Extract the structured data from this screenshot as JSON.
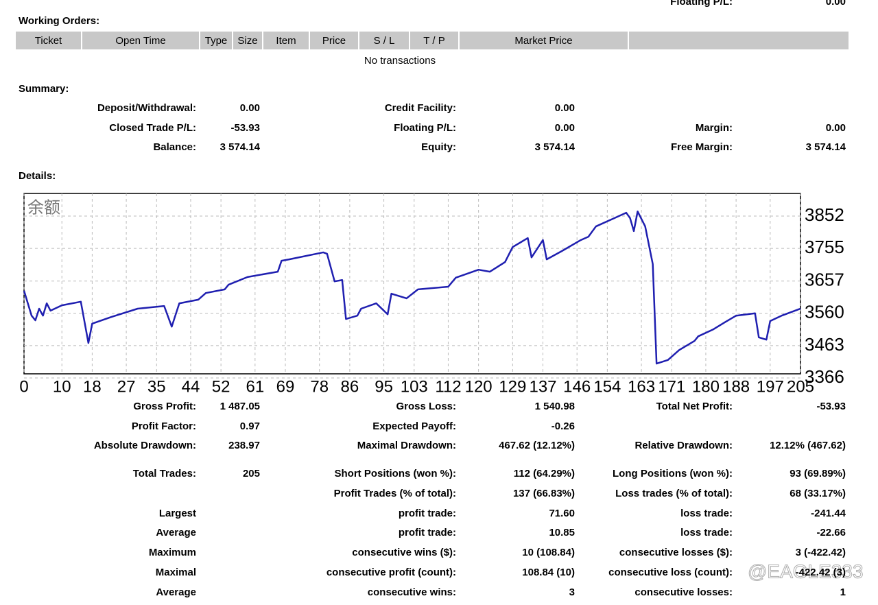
{
  "header": {
    "label": "Floating P/L:",
    "value": "0.00"
  },
  "working_orders": {
    "title": "Working Orders:",
    "columns": [
      "Ticket",
      "Open Time",
      "Type",
      "Size",
      "Item",
      "Price",
      "S / L",
      "T / P",
      "Market Price"
    ],
    "empty": "No transactions"
  },
  "summary": {
    "title": "Summary:",
    "rows": [
      [
        {
          "label": "Deposit/Withdrawal:",
          "value": "0.00"
        },
        {
          "label": "Credit Facility:",
          "value": "0.00"
        },
        null
      ],
      [
        {
          "label": "Closed Trade P/L:",
          "value": "-53.93"
        },
        {
          "label": "Floating P/L:",
          "value": "0.00"
        },
        {
          "label": "Margin:",
          "value": "0.00"
        }
      ],
      [
        {
          "label": "Balance:",
          "value": "3 574.14"
        },
        {
          "label": "Equity:",
          "value": "3 574.14"
        },
        {
          "label": "Free Margin:",
          "value": "3 574.14"
        }
      ]
    ]
  },
  "details": {
    "title": "Details:",
    "rows": [
      [
        {
          "label": "Gross Profit:",
          "value": "1 487.05"
        },
        {
          "label": "Gross Loss:",
          "value": "1 540.98"
        },
        {
          "label": "Total Net Profit:",
          "value": "-53.93"
        }
      ],
      [
        {
          "label": "Profit Factor:",
          "value": "0.97"
        },
        {
          "label": "Expected Payoff:",
          "value": "-0.26"
        },
        null
      ],
      [
        {
          "label": "Absolute Drawdown:",
          "value": "238.97"
        },
        {
          "label": "Maximal Drawdown:",
          "value": "467.62 (12.12%)"
        },
        {
          "label": "Relative Drawdown:",
          "value": "12.12% (467.62)"
        }
      ],
      [
        {
          "label": "Total Trades:",
          "value": "205"
        },
        {
          "label": "Short Positions (won %):",
          "value": "112 (64.29%)"
        },
        {
          "label": "Long Positions (won %):",
          "value": "93 (69.89%)"
        }
      ],
      [
        null,
        {
          "label": "Profit Trades (% of total):",
          "value": "137 (66.83%)"
        },
        {
          "label": "Loss trades (% of total):",
          "value": "68 (33.17%)"
        }
      ],
      [
        {
          "label": "Largest"
        },
        {
          "label": "profit trade:",
          "value": "71.60"
        },
        {
          "label": "loss trade:",
          "value": "-241.44"
        }
      ],
      [
        {
          "label": "Average"
        },
        {
          "label": "profit trade:",
          "value": "10.85"
        },
        {
          "label": "loss trade:",
          "value": "-22.66"
        }
      ],
      [
        {
          "label": "Maximum"
        },
        {
          "label": "consecutive wins ($):",
          "value": "10 (108.84)"
        },
        {
          "label": "consecutive losses ($):",
          "value": "3 (-422.42)"
        }
      ],
      [
        {
          "label": "Maximal"
        },
        {
          "label": "consecutive profit (count):",
          "value": "108.84 (10)"
        },
        {
          "label": "consecutive loss (count):",
          "value": "-422.42 (3)"
        }
      ],
      [
        {
          "label": "Average"
        },
        {
          "label": "consecutive wins:",
          "value": "3"
        },
        {
          "label": "consecutive losses:",
          "value": "1"
        }
      ]
    ]
  },
  "watermark": "@EAGLE333",
  "chart_data": {
    "type": "line",
    "title": "余额",
    "x": [
      0,
      2,
      3,
      4,
      5,
      6,
      7,
      10,
      15,
      17,
      18,
      23,
      30,
      37,
      39,
      41,
      46,
      48,
      53,
      54,
      59,
      67,
      68,
      70,
      79,
      80,
      82,
      84,
      85,
      88,
      89,
      93,
      96,
      97,
      101,
      104,
      112,
      114,
      120,
      123,
      127,
      129,
      133,
      134,
      137,
      138,
      142,
      147,
      149,
      151,
      159,
      160,
      161,
      162,
      164,
      166,
      167,
      170,
      173,
      177,
      178,
      182,
      185,
      188,
      193,
      194,
      196,
      197,
      200,
      205
    ],
    "series": [
      {
        "color": "#1f1fb0",
        "values": [
          3628,
          3553,
          3539,
          3574,
          3553,
          3590,
          3568,
          3584,
          3595,
          3471,
          3529,
          3549,
          3574,
          3582,
          3520,
          3590,
          3601,
          3621,
          3632,
          3646,
          3669,
          3685,
          3718,
          3722,
          3743,
          3739,
          3656,
          3660,
          3543,
          3553,
          3574,
          3590,
          3557,
          3619,
          3605,
          3632,
          3640,
          3667,
          3691,
          3685,
          3714,
          3759,
          3786,
          3728,
          3780,
          3722,
          3747,
          3780,
          3790,
          3821,
          3862,
          3846,
          3807,
          3866,
          3821,
          3708,
          3409,
          3420,
          3450,
          3477,
          3491,
          3512,
          3533,
          3553,
          3560,
          3488,
          3481,
          3537,
          3553,
          3574.14
        ]
      }
    ],
    "xlim": [
      0,
      205
    ],
    "xticks": [
      0,
      10,
      18,
      27,
      35,
      44,
      52,
      61,
      69,
      78,
      86,
      95,
      103,
      112,
      120,
      129,
      137,
      146,
      154,
      163,
      171,
      180,
      188,
      197,
      205
    ],
    "ylim": [
      3366,
      3920
    ],
    "yticks": [
      3852,
      3755,
      3657,
      3560,
      3463,
      3366
    ],
    "grid": true
  }
}
